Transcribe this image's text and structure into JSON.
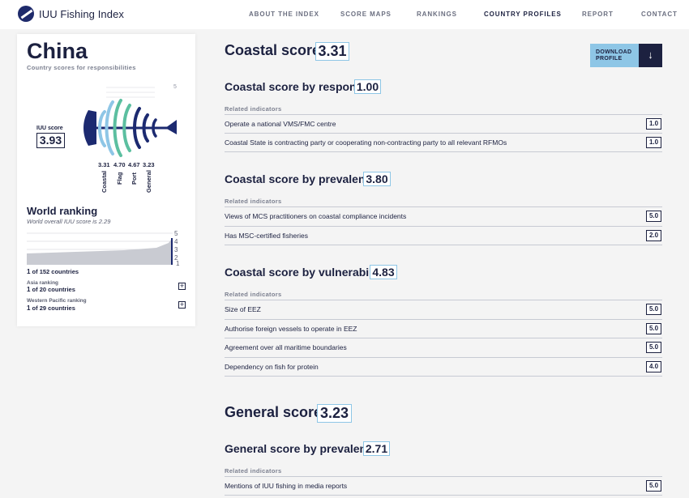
{
  "header": {
    "logo_text": "IUU Fishing Index",
    "nav": [
      "ABOUT THE INDEX",
      "SCORE MAPS",
      "RANKINGS",
      "COUNTRY PROFILES",
      "REPORT",
      "CONTACT"
    ],
    "active_nav": "COUNTRY PROFILES"
  },
  "profile": {
    "country": "China",
    "subtitle": "Country scores for responsibilities",
    "iuu_label": "IUU score",
    "iuu_score": "3.93",
    "fish_scale_max": "5",
    "fish_scores": [
      "3.31",
      "4.70",
      "4.67",
      "3.23"
    ],
    "fish_categories": [
      "Coastal",
      "Flag",
      "Port",
      "General"
    ],
    "world_ranking_title": "World ranking",
    "world_ranking_sub": "World overall IUU score is 2.29",
    "chart_axis": [
      "5",
      "4",
      "3",
      "2",
      "1"
    ],
    "rank_world_num": "1",
    "rank_world_text": "of 152 countries",
    "asia_label": "Asia ranking",
    "rank_asia_num": "1",
    "rank_asia_text": "of 20 countries",
    "wp_label": "Western Pacific ranking",
    "rank_wp_num": "1",
    "rank_wp_text": "of 29 countries",
    "plus": "+"
  },
  "download": {
    "label_line1": "DOWNLOAD",
    "label_line2": "PROFILE",
    "icon": "↓"
  },
  "sections": {
    "coastal_title": "Coastal score",
    "coastal_score": "3.31",
    "response_title": "Coastal score by response",
    "response_score": "1.00",
    "related": "Related indicators",
    "response_rows": [
      {
        "text": "Operate a national VMS/FMC centre",
        "value": "1.0"
      },
      {
        "text": "Coastal State is contracting party or cooperating non-contracting party to all relevant RFMOs",
        "value": "1.0"
      }
    ],
    "prevalence_title": "Coastal score by prevalence",
    "prevalence_score": "3.80",
    "prevalence_rows": [
      {
        "text": "Views of MCS practitioners on coastal compliance incidents",
        "value": "5.0"
      },
      {
        "text": "Has MSC-certified fisheries",
        "value": "2.0"
      }
    ],
    "vulnerability_title": "Coastal score by vulnerability",
    "vulnerability_score": "4.83",
    "vulnerability_rows": [
      {
        "text": "Size of EEZ",
        "value": "5.0"
      },
      {
        "text": "Authorise foreign vessels to operate in EEZ",
        "value": "5.0"
      },
      {
        "text": "Agreement over all maritime boundaries",
        "value": "5.0"
      },
      {
        "text": "Dependency on fish for protein",
        "value": "4.0"
      }
    ],
    "general_title": "General score",
    "general_score": "3.23",
    "gen_prevalence_title": "General score by prevalence",
    "gen_prevalence_score": "2.71",
    "gen_prevalence_rows": [
      {
        "text": "Mentions of IUU fishing in media reports",
        "value": "5.0"
      }
    ]
  },
  "colors": {
    "accent": "#8ec6e6",
    "navy": "#1c2140",
    "green": "#5cbfa0"
  }
}
